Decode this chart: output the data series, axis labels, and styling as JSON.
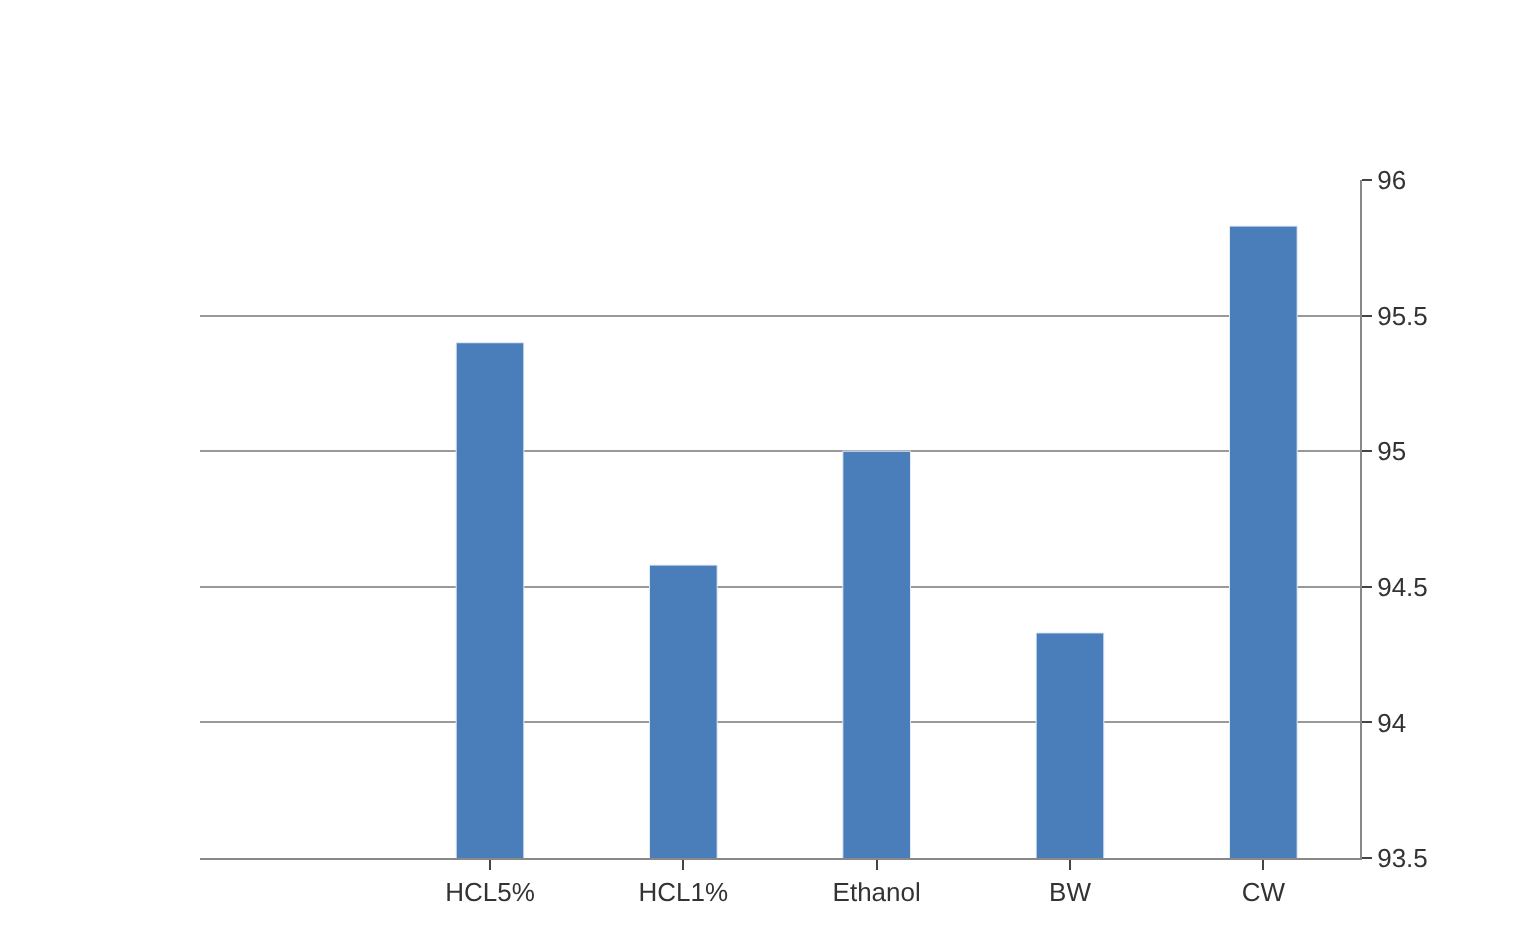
{
  "chart_data": {
    "type": "bar",
    "categories": [
      null,
      "HCL5%",
      "HCL1%",
      "Ethanol",
      "BW",
      "CW"
    ],
    "series": [
      {
        "color": "#4a7ebb",
        "values": [
          null,
          95.4,
          94.58,
          95.0,
          94.33,
          95.83
        ]
      }
    ],
    "ylim": [
      93.5,
      96
    ],
    "yticks": [
      93.5,
      94,
      94.5,
      95,
      95.5,
      96
    ],
    "grid": "y"
  }
}
